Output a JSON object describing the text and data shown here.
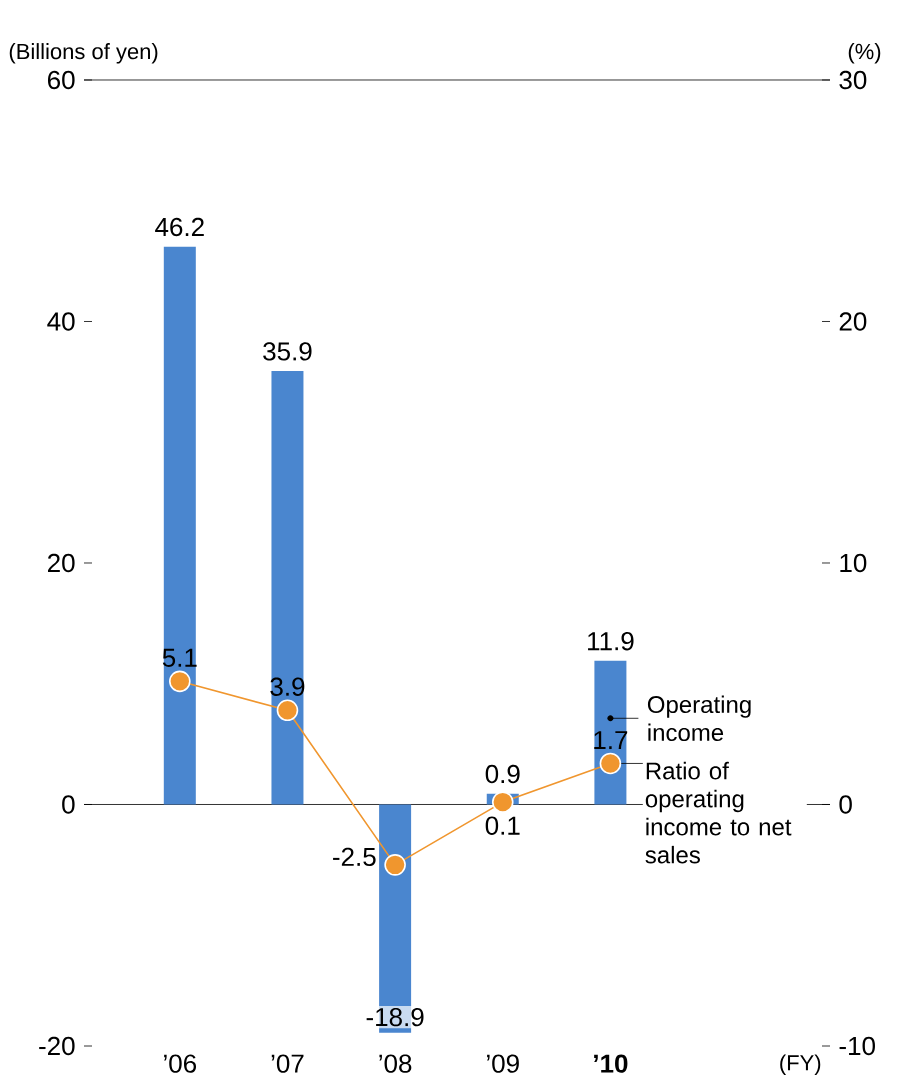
{
  "chart_data": {
    "type": "bar",
    "ylabel": "(Billions of yen)",
    "y2label": "(%)",
    "xlabel": "(FY)",
    "categories": [
      "’06",
      "’07",
      "’08",
      "’09",
      "’10"
    ],
    "series": [
      {
        "name": "Operating income",
        "color": "#4a86cf",
        "values": [
          46.2,
          35.9,
          -18.9,
          0.9,
          11.9
        ]
      },
      {
        "name": "Ratio of operating income to net sales",
        "type": "line",
        "axis": "y2",
        "color": "#f0962e",
        "values": [
          5.1,
          3.9,
          -2.5,
          0.1,
          1.7
        ]
      }
    ],
    "ylim": [
      -20,
      60
    ],
    "yticks": [
      -20,
      0,
      20,
      40,
      60
    ],
    "y2lim": [
      -10,
      30
    ],
    "y2ticks": [
      -10,
      0,
      10,
      20,
      30
    ],
    "data_labels": true,
    "marker": "circle",
    "line_style": "solid",
    "legend": false,
    "ref_lines": [
      {
        "axis": "y",
        "value": 0
      }
    ]
  }
}
